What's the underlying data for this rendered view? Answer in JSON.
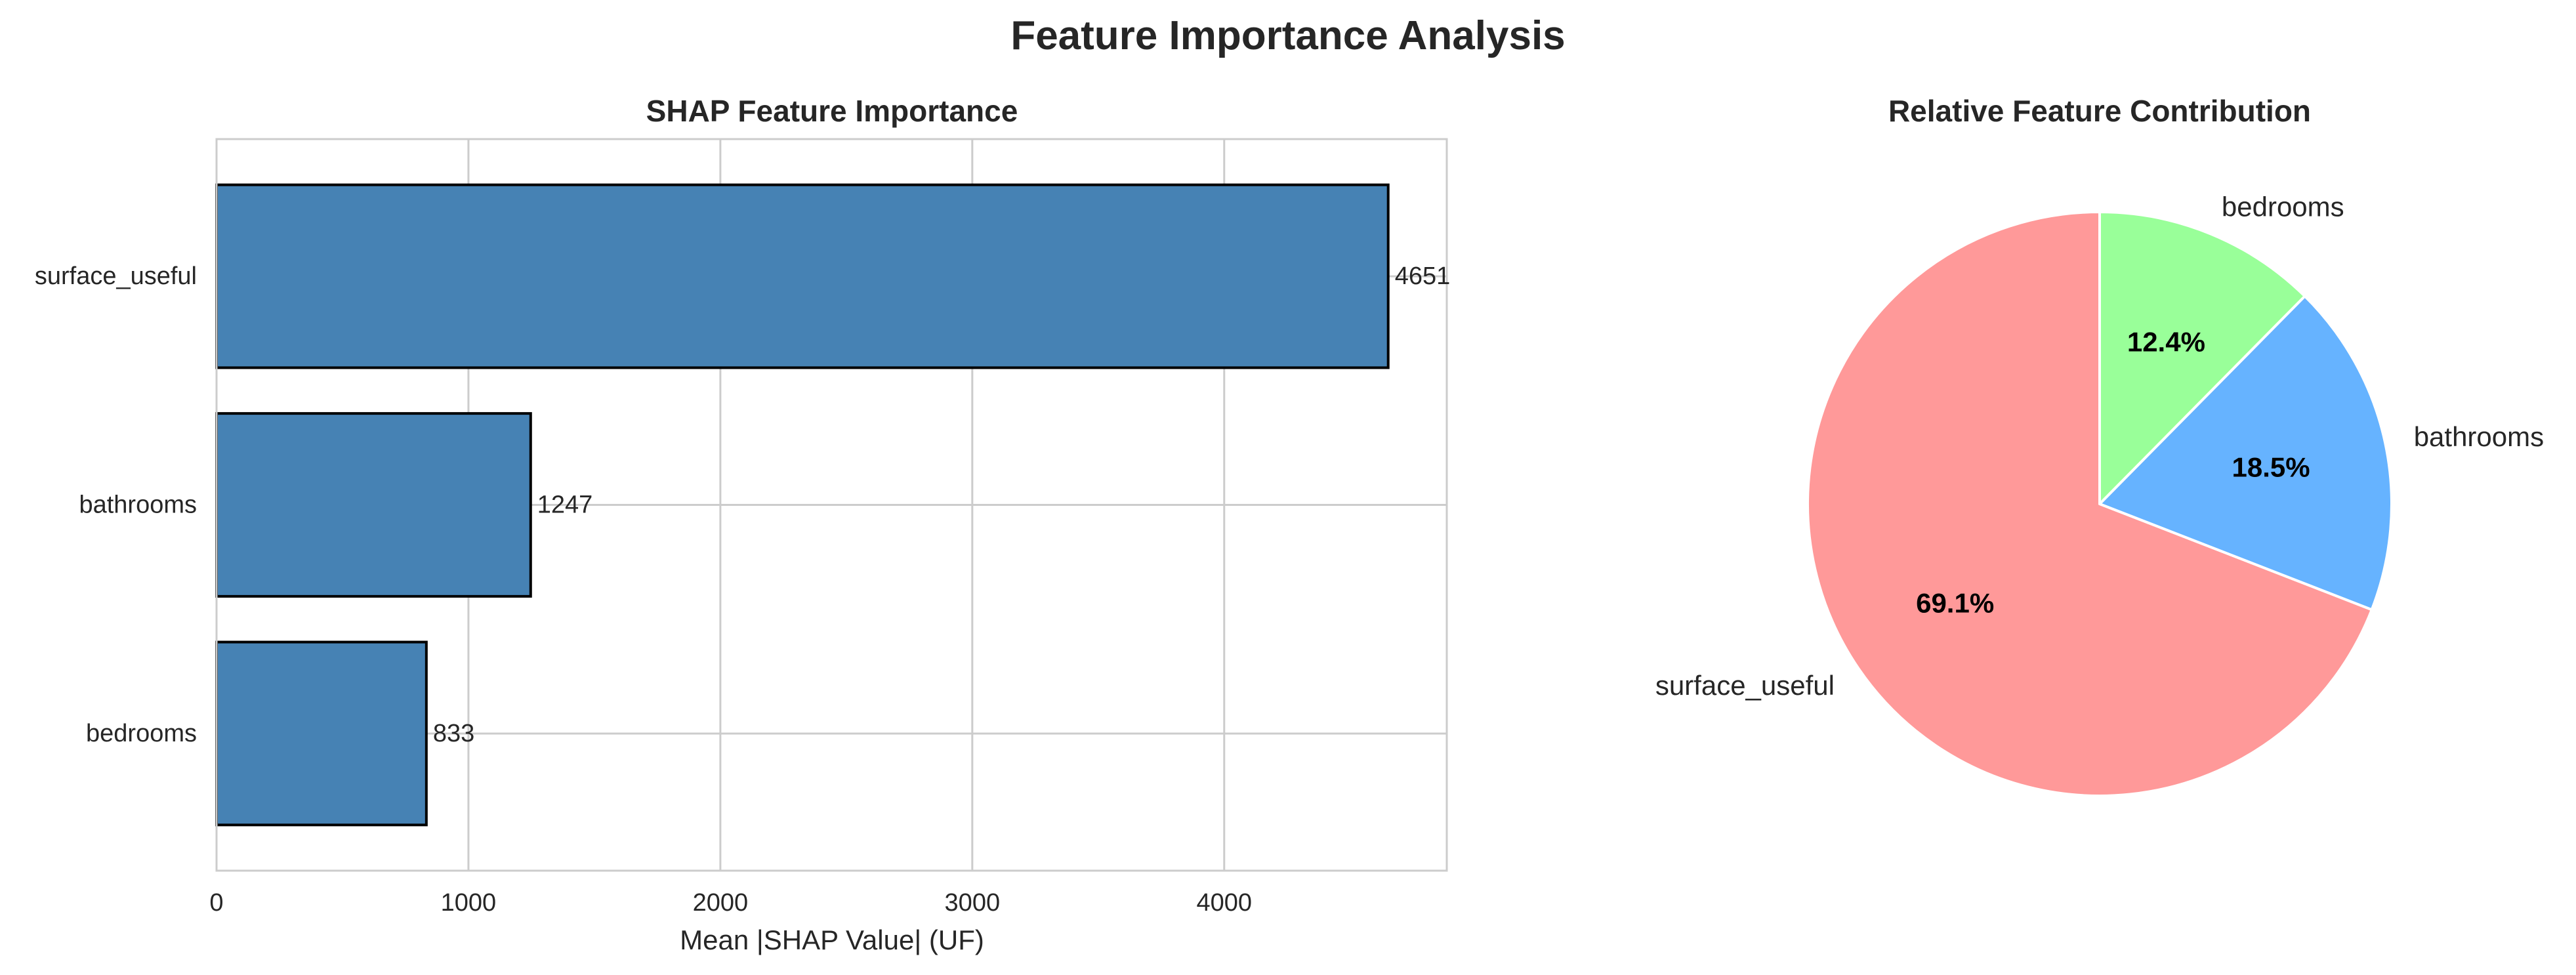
{
  "figure": {
    "suptitle": "Feature Importance Analysis"
  },
  "colors": {
    "bar_fill": "#4682b4",
    "bar_edge": "#000000",
    "grid": "#cccccc",
    "axes_edge": "#cccccc",
    "text": "#262626",
    "pie_text_bold": "#000000",
    "pie_edge": "#ffffff"
  },
  "chart_data": [
    {
      "type": "bar",
      "orientation": "horizontal",
      "title": "SHAP Feature Importance",
      "xlabel": "Mean |SHAP Value| (UF)",
      "ylabel": "",
      "categories": [
        "surface_useful",
        "bathrooms",
        "bedrooms"
      ],
      "values": [
        4651,
        1247,
        833
      ],
      "value_labels": [
        "4651",
        "1247",
        "833"
      ],
      "xlim": [
        0,
        4883.55
      ],
      "xticks": [
        0,
        1000,
        2000,
        3000,
        4000
      ],
      "xtick_labels": [
        "0",
        "1000",
        "2000",
        "3000",
        "4000"
      ],
      "grid": true
    },
    {
      "type": "pie",
      "title": "Relative Feature Contribution",
      "labels": [
        "surface_useful",
        "bathrooms",
        "bedrooms"
      ],
      "values": [
        69.1,
        18.5,
        12.4
      ],
      "pct_labels": [
        "69.1%",
        "18.5%",
        "12.4%"
      ],
      "colors": [
        "#ff9999",
        "#66b3ff",
        "#99ff99"
      ],
      "start_angle": 90,
      "direction": "counterclockwise"
    }
  ]
}
